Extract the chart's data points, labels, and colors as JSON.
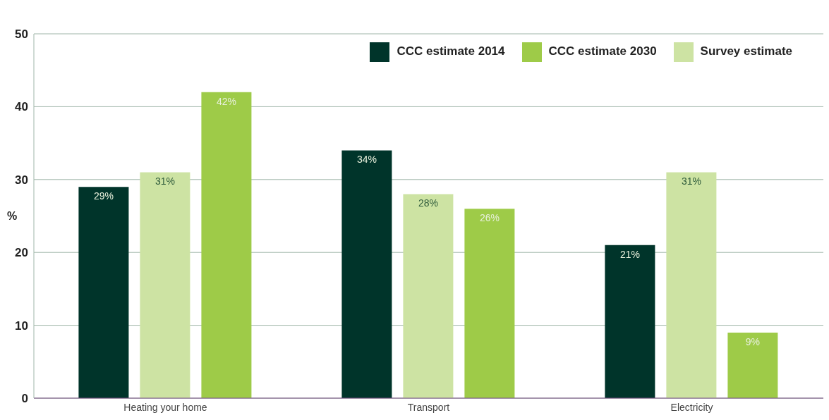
{
  "chart_data": {
    "type": "bar",
    "ylabel": "%",
    "categories": [
      "Heating your home",
      "Transport",
      "Electricity"
    ],
    "series": [
      {
        "name": "CCC estimate 2014",
        "color": "#00342a",
        "values": [
          29,
          34,
          21
        ],
        "value_labels": [
          "29%",
          "34%",
          "21%"
        ]
      },
      {
        "name": "Survey estimate",
        "color": "#cde3a3",
        "values": [
          31,
          28,
          31
        ],
        "value_labels": [
          "31%",
          "28%",
          "31%"
        ]
      },
      {
        "name": "CCC estimate 2030",
        "color": "#9ecb48",
        "values": [
          42,
          26,
          9
        ],
        "value_labels": [
          "42%",
          "26%",
          "9%"
        ]
      }
    ],
    "ylim": [
      0,
      50
    ],
    "yticks": [
      0,
      10,
      20,
      30,
      40,
      50
    ],
    "grid": "y",
    "legend": "top right"
  }
}
